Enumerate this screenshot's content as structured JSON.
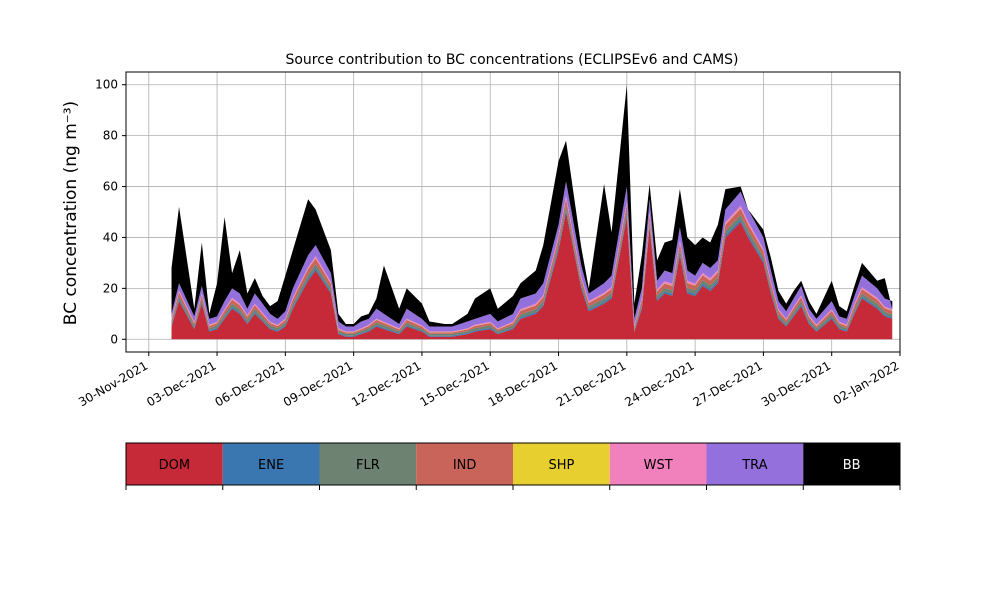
{
  "chart_data": {
    "type": "area",
    "stacked": true,
    "title": "Source contribution to BC concentrations (ECLIPSEv6 and CAMS)",
    "ylabel": "BC concentration (ng m⁻³)",
    "xlabel": "",
    "ylim": [
      -5,
      105
    ],
    "yticks": [
      0,
      20,
      40,
      60,
      80,
      100
    ],
    "xlim": [
      "2021-11-29",
      "2022-01-02"
    ],
    "xticks": [
      "30-Nov-2021",
      "03-Dec-2021",
      "06-Dec-2021",
      "09-Dec-2021",
      "12-Dec-2021",
      "15-Dec-2021",
      "18-Dec-2021",
      "21-Dec-2021",
      "24-Dec-2021",
      "27-Dec-2021",
      "30-Dec-2021",
      "02-Jan-2022"
    ],
    "grid": true,
    "legend_position": "bottom colorbar",
    "series": [
      {
        "name": "DOM",
        "color": "#c62a38"
      },
      {
        "name": "ENE",
        "color": "#3a77b0"
      },
      {
        "name": "FLR",
        "color": "#6d8271"
      },
      {
        "name": "IND",
        "color": "#c8645a"
      },
      {
        "name": "SHP",
        "color": "#e7cf2f"
      },
      {
        "name": "WST",
        "color": "#f081bd"
      },
      {
        "name": "TRA",
        "color": "#9370db"
      },
      {
        "name": "BB",
        "color": "#000000"
      }
    ],
    "cumulative_totals": {
      "x": [
        "2021-12-01",
        "2021-12-01",
        "2021-12-02",
        "2021-12-02",
        "2021-12-02",
        "2021-12-03",
        "2021-12-03",
        "2021-12-03",
        "2021-12-04",
        "2021-12-04",
        "2021-12-04",
        "2021-12-05",
        "2021-12-05",
        "2021-12-05",
        "2021-12-06",
        "2021-12-06",
        "2021-12-07",
        "2021-12-07",
        "2021-12-08",
        "2021-12-08",
        "2021-12-08",
        "2021-12-09",
        "2021-12-09",
        "2021-12-09",
        "2021-12-10",
        "2021-12-10",
        "2021-12-11",
        "2021-12-11",
        "2021-12-12",
        "2021-12-12",
        "2021-12-13",
        "2021-12-13",
        "2021-12-14",
        "2021-12-14",
        "2021-12-15",
        "2021-12-15",
        "2021-12-16",
        "2021-12-16",
        "2021-12-17",
        "2021-12-17",
        "2021-12-18",
        "2021-12-18",
        "2021-12-19",
        "2021-12-19",
        "2021-12-20",
        "2021-12-20",
        "2021-12-21",
        "2021-12-21",
        "2021-12-21",
        "2021-12-22",
        "2021-12-22",
        "2021-12-22",
        "2021-12-23",
        "2021-12-23",
        "2021-12-23",
        "2021-12-24",
        "2021-12-24",
        "2021-12-24",
        "2021-12-25",
        "2021-12-25",
        "2021-12-26",
        "2021-12-26",
        "2021-12-27",
        "2021-12-27",
        "2021-12-27",
        "2021-12-28",
        "2021-12-28",
        "2021-12-28",
        "2021-12-29",
        "2021-12-29",
        "2021-12-30",
        "2021-12-30",
        "2021-12-30",
        "2021-12-31",
        "2021-12-31",
        "2022-01-01",
        "2022-01-01",
        "2022-01-01"
      ],
      "DOM": [
        5,
        15,
        4,
        14,
        3,
        4,
        8,
        12,
        10,
        6,
        10,
        7,
        4,
        3,
        5,
        12,
        23,
        27,
        18,
        2,
        1,
        1,
        2,
        3,
        5,
        4,
        2,
        5,
        3,
        1,
        1,
        1,
        2,
        3,
        4,
        2,
        4,
        8,
        10,
        13,
        35,
        50,
        20,
        11,
        14,
        16,
        48,
        3,
        12,
        44,
        15,
        18,
        17,
        33,
        18,
        17,
        21,
        19,
        22,
        40,
        46,
        40,
        30,
        18,
        8,
        5,
        9,
        13,
        6,
        3,
        8,
        4,
        3,
        10,
        16,
        12,
        9,
        8
      ],
      "ENE": [
        5.5,
        15.6,
        4.5,
        14.6,
        3.5,
        4.5,
        8.6,
        12.7,
        10.6,
        6.6,
        10.6,
        7.5,
        4.5,
        3.5,
        5.5,
        12.7,
        23.9,
        28,
        18.7,
        2.4,
        1.4,
        1.4,
        2.4,
        3.5,
        5.5,
        4.5,
        2.4,
        5.5,
        3.4,
        1.4,
        1.4,
        1.4,
        2.4,
        3.5,
        4.5,
        2.4,
        4.5,
        8.6,
        10.6,
        13.7,
        36,
        51,
        20.8,
        11.7,
        14.7,
        16.8,
        49,
        3.4,
        12.7,
        45,
        15.8,
        18.8,
        17.8,
        34,
        18.8,
        17.8,
        21.8,
        19.8,
        22.9,
        41,
        47,
        41,
        30.9,
        18.8,
        8.6,
        5.5,
        9.6,
        13.7,
        6.6,
        3.5,
        8.6,
        4.5,
        3.5,
        10.6,
        16.7,
        12.7,
        9.6,
        8.6
      ],
      "FLR": [
        6.5,
        16.8,
        5.4,
        15.8,
        4.4,
        5.5,
        9.8,
        14,
        11.8,
        7.7,
        11.9,
        8.6,
        5.5,
        4.4,
        6.5,
        14,
        25.4,
        29.5,
        20,
        3.2,
        2.1,
        2.1,
        3.2,
        4.4,
        6.5,
        5.5,
        3.2,
        6.5,
        4.2,
        2.1,
        2.1,
        2.1,
        3.2,
        4.4,
        5.5,
        3.2,
        5.5,
        9.8,
        11.8,
        15,
        37.6,
        52.7,
        22,
        12.9,
        16,
        18.1,
        50.7,
        4.2,
        14,
        46.5,
        17.1,
        20.1,
        19.2,
        35.6,
        20.2,
        19.2,
        23.2,
        21.2,
        24.3,
        42.6,
        48.8,
        42.7,
        32.4,
        20.1,
        9.8,
        6.5,
        10.8,
        15,
        7.7,
        4.4,
        9.8,
        5.5,
        4.4,
        11.8,
        18,
        14,
        10.8,
        9.8
      ],
      "IND": [
        7.5,
        18.5,
        6.3,
        17.4,
        5.2,
        6.4,
        11.2,
        15.6,
        13.3,
        8.9,
        13.4,
        9.8,
        6.4,
        5.2,
        7.6,
        15.7,
        27.6,
        31.8,
        21.8,
        3.9,
        2.7,
        2.7,
        3.9,
        5.2,
        7.6,
        6.4,
        3.9,
        7.6,
        5,
        2.7,
        2.7,
        2.7,
        3.9,
        5.2,
        6.4,
        3.9,
        6.4,
        11.2,
        13.3,
        16.6,
        39.8,
        55.3,
        23.7,
        14.3,
        17.6,
        19.8,
        53.1,
        5,
        15.6,
        48.8,
        18.8,
        21.9,
        21,
        37.8,
        22.1,
        21.1,
        25.2,
        23.1,
        26.3,
        45,
        51.4,
        45.2,
        34.6,
        21.9,
        11.2,
        7.6,
        12.2,
        16.6,
        8.9,
        5.2,
        11.2,
        6.4,
        5.2,
        13.3,
        19.7,
        15.6,
        12.2,
        11.2
      ],
      "SHP": [
        7.6,
        18.6,
        6.4,
        17.5,
        5.3,
        6.5,
        11.3,
        15.7,
        13.4,
        9,
        13.5,
        9.9,
        6.5,
        5.3,
        7.7,
        15.8,
        27.7,
        31.9,
        21.9,
        4,
        2.8,
        2.8,
        4,
        5.3,
        7.7,
        6.5,
        4,
        7.7,
        5.1,
        2.8,
        2.8,
        2.8,
        4,
        5.3,
        6.5,
        4,
        6.5,
        11.3,
        13.4,
        16.7,
        39.9,
        55.4,
        23.8,
        14.4,
        17.7,
        19.9,
        53.2,
        5.1,
        15.7,
        48.9,
        18.9,
        22,
        21.1,
        37.9,
        22.2,
        21.2,
        25.3,
        23.2,
        26.4,
        45.1,
        51.5,
        45.3,
        34.7,
        22,
        11.3,
        7.7,
        12.3,
        16.7,
        9,
        5.3,
        11.3,
        6.5,
        5.3,
        13.4,
        19.8,
        15.7,
        12.3,
        11.3
      ],
      "WST": [
        8,
        19.2,
        6.8,
        18,
        5.7,
        6.9,
        11.8,
        16.3,
        14,
        9.5,
        14,
        10.4,
        6.9,
        5.7,
        8.1,
        16.4,
        28.4,
        32.7,
        22.6,
        4.3,
        3.1,
        3.1,
        4.3,
        5.7,
        8.1,
        6.9,
        4.3,
        8.1,
        5.4,
        3.1,
        3.1,
        3.1,
        4.3,
        5.7,
        6.9,
        4.3,
        6.9,
        11.8,
        14,
        17.3,
        40.8,
        56.4,
        24.5,
        15,
        18.3,
        20.6,
        54.2,
        5.4,
        16.3,
        49.9,
        19.6,
        22.8,
        21.8,
        38.8,
        23,
        21.9,
        26.1,
        24,
        27.2,
        46,
        52.5,
        46.2,
        35.5,
        22.8,
        11.8,
        8.1,
        12.8,
        17.3,
        9.5,
        5.7,
        11.8,
        6.9,
        5.7,
        14,
        20.5,
        16.3,
        12.8,
        11.8
      ],
      "TRA": [
        10,
        22,
        9,
        21,
        8,
        9,
        15,
        20,
        18,
        12,
        18,
        14,
        10,
        8,
        11,
        20,
        33,
        37,
        26,
        7,
        5,
        5,
        7,
        8,
        12,
        10,
        6,
        12,
        8,
        5,
        5,
        5,
        7,
        8,
        10,
        7,
        10,
        16,
        18,
        22,
        45,
        62,
        29,
        18,
        22,
        25,
        60,
        8,
        20,
        55,
        23,
        27,
        26,
        44,
        27,
        25,
        30,
        28,
        31,
        51,
        58,
        51,
        40,
        27,
        15,
        11,
        16,
        21,
        12,
        8,
        15,
        9,
        8,
        17,
        25,
        20,
        16,
        15
      ],
      "BB": [
        28,
        52,
        12,
        38,
        10,
        22,
        48,
        26,
        35,
        18,
        24,
        17,
        13,
        15,
        25,
        35,
        55,
        51,
        35,
        10,
        6,
        6,
        9,
        10,
        16,
        29,
        12,
        20,
        14,
        7,
        6,
        6,
        10,
        16,
        20,
        12,
        17,
        22,
        27,
        37,
        70,
        78,
        36,
        20,
        61,
        42,
        100,
        14,
        33,
        61,
        31,
        38,
        39,
        59,
        40,
        37,
        40,
        38,
        45,
        59,
        60,
        51,
        43,
        32,
        19,
        14,
        19,
        23,
        15,
        10,
        23,
        13,
        11,
        21,
        30,
        23,
        24,
        12
      ]
    }
  }
}
